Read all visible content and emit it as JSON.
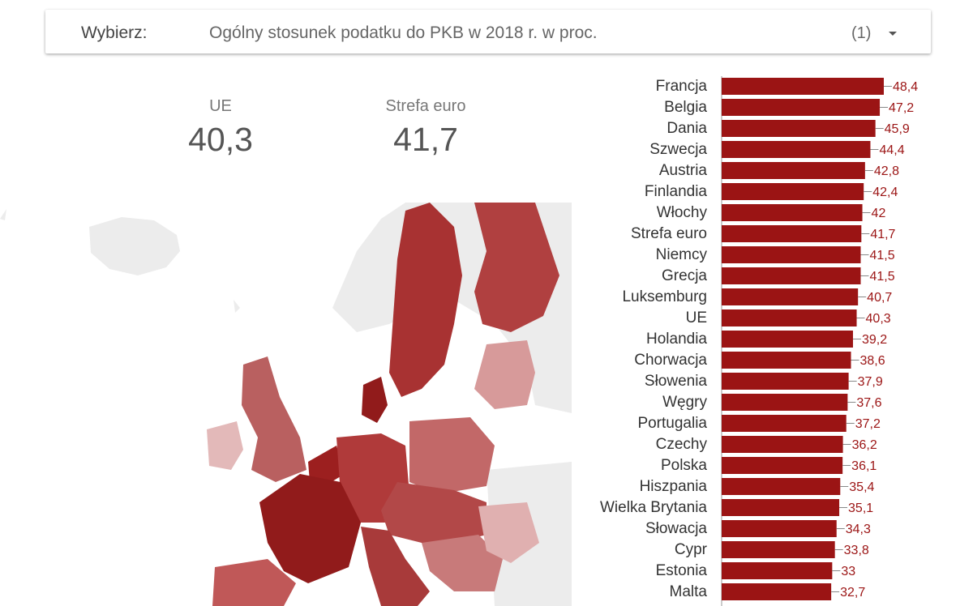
{
  "selector": {
    "label": "Wybierz:",
    "value": "Ogólny stosunek podatku do PKB w 2018 r. w proc.",
    "count": "(1)"
  },
  "kpis": {
    "ue": {
      "label": "UE",
      "value": "40,3"
    },
    "euro": {
      "label": "Strefa euro",
      "value": "41,7"
    }
  },
  "colors": {
    "bar": "#9b1414",
    "value_label": "#9b1414",
    "map_other": "#ececec",
    "map_dark": "#911b1b",
    "map_mid": "#b44545",
    "map_light": "#d79a9a"
  },
  "chart_data": {
    "type": "bar",
    "orientation": "horizontal",
    "categories": [
      "Francja",
      "Belgia",
      "Dania",
      "Szwecja",
      "Austria",
      "Finlandia",
      "Włochy",
      "Strefa euro",
      "Niemcy",
      "Grecja",
      "Luksemburg",
      "UE",
      "Holandia",
      "Chorwacja",
      "Słowenia",
      "Węgry",
      "Portugalia",
      "Czechy",
      "Polska",
      "Hiszpania",
      "Wielka Brytania",
      "Słowacja",
      "Cypr",
      "Estonia",
      "Malta"
    ],
    "values": [
      48.4,
      47.2,
      45.9,
      44.4,
      42.8,
      42.4,
      42,
      41.7,
      41.5,
      41.5,
      40.7,
      40.3,
      39.2,
      38.6,
      37.9,
      37.6,
      37.2,
      36.2,
      36.1,
      35.4,
      35.1,
      34.3,
      33.8,
      33,
      32.7
    ],
    "value_labels": [
      "48,4",
      "47,2",
      "45,9",
      "44,4",
      "42,8",
      "42,4",
      "42",
      "41,7",
      "41,5",
      "41,5",
      "40,7",
      "40,3",
      "39,2",
      "38,6",
      "37,9",
      "37,6",
      "37,2",
      "36,2",
      "36,1",
      "35,4",
      "35,1",
      "34,3",
      "33,8",
      "33",
      "32,7"
    ],
    "xlim": [
      0,
      48.4
    ]
  }
}
